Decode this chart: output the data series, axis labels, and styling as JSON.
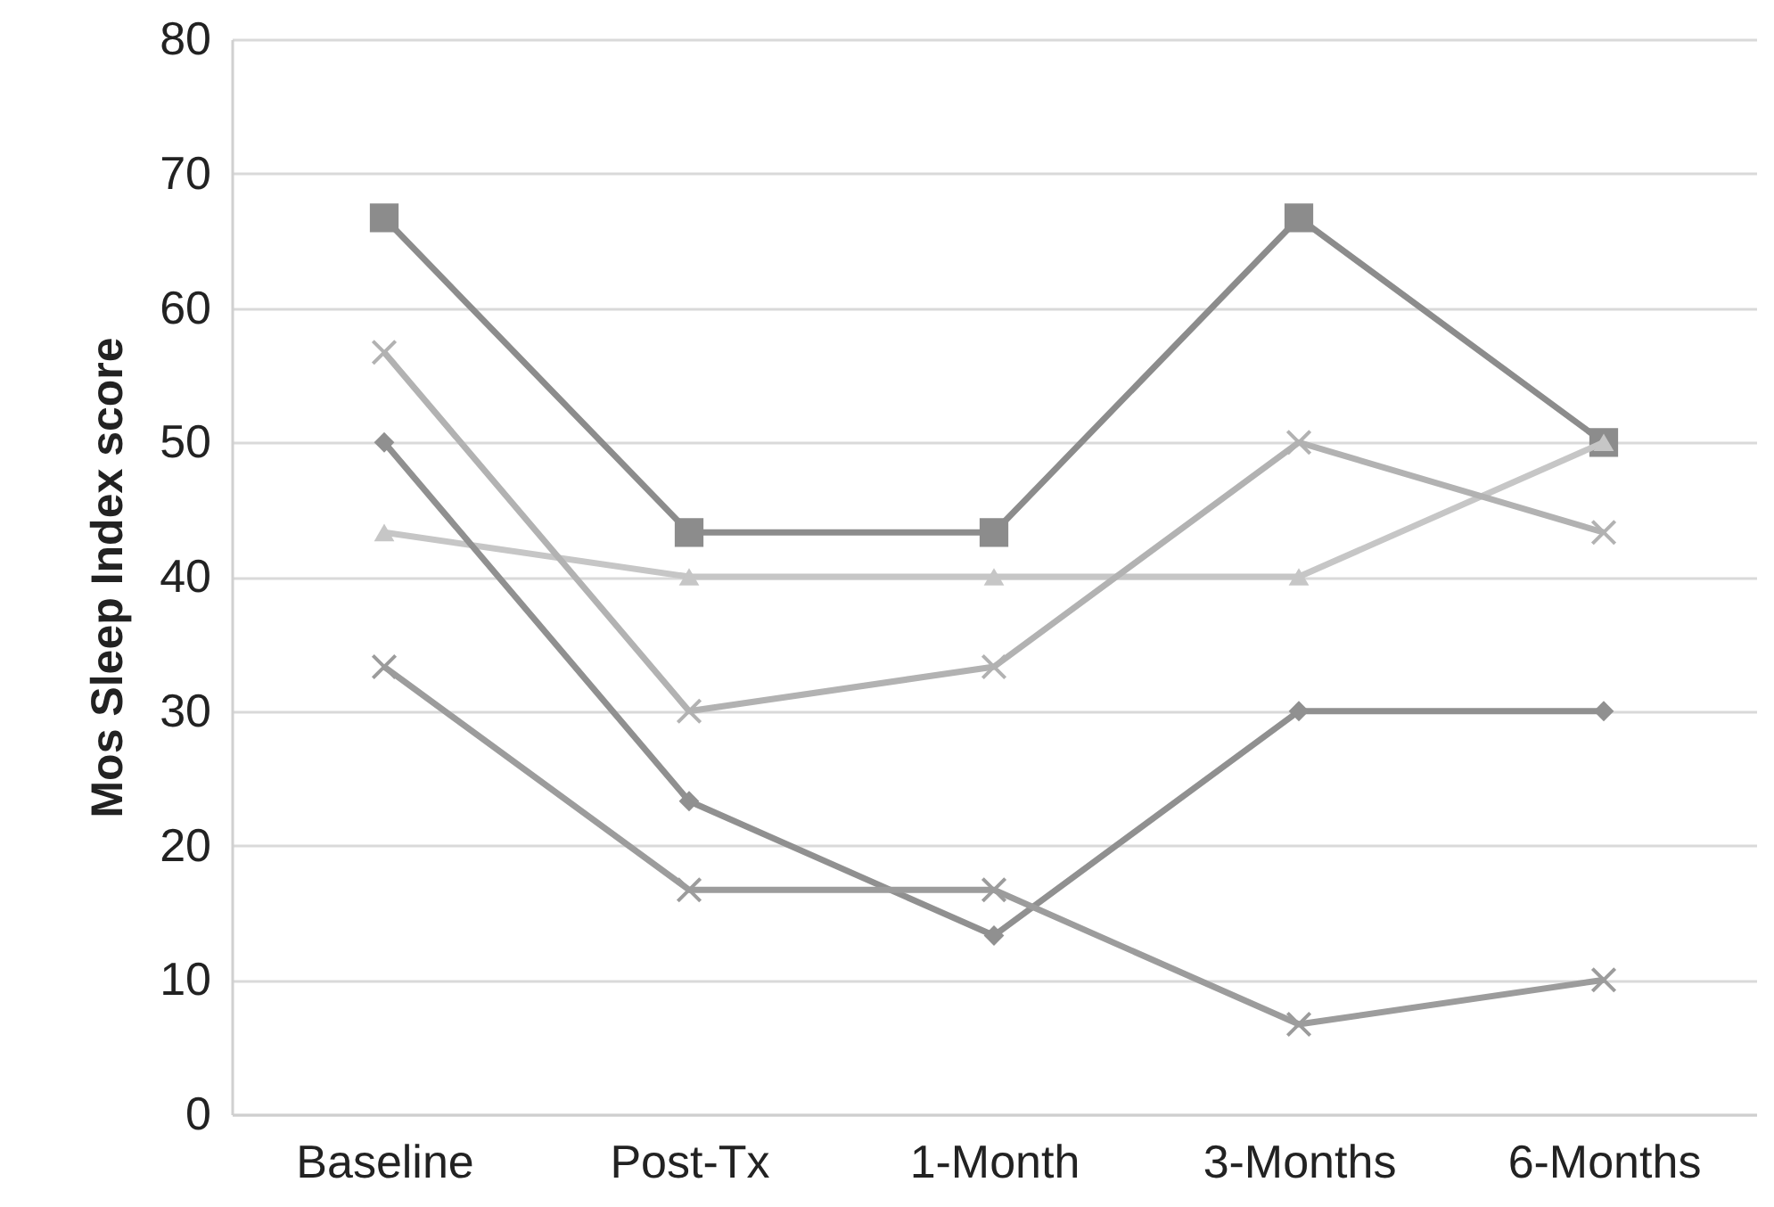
{
  "chart_data": {
    "type": "line",
    "ylabel": "Mos Sleep Index score",
    "categories": [
      "Baseline",
      "Post-Tx",
      "1-Month",
      "3-Months",
      "6-Months"
    ],
    "series": [
      {
        "color": "#8c8c8c",
        "marker": "square",
        "values": [
          66.7,
          43.3,
          43.3,
          66.7,
          50
        ]
      },
      {
        "color": "#c6c6c6",
        "marker": "triangle",
        "values": [
          43.3,
          40,
          40,
          40,
          50
        ]
      },
      {
        "color": "#b2b2b2",
        "marker": "cross",
        "values": [
          56.7,
          30,
          33.3,
          50,
          43.3
        ]
      },
      {
        "color": "#909090",
        "marker": "diamond",
        "values": [
          50,
          23.3,
          13.3,
          30,
          30
        ]
      },
      {
        "color": "#9c9c9c",
        "marker": "cross",
        "values": [
          33.3,
          16.7,
          16.7,
          6.7,
          10
        ]
      }
    ],
    "ylim": [
      0,
      80
    ],
    "yticks": [
      0,
      10,
      20,
      30,
      40,
      50,
      60,
      70,
      80
    ],
    "grid": "y",
    "line_style": "solid"
  }
}
